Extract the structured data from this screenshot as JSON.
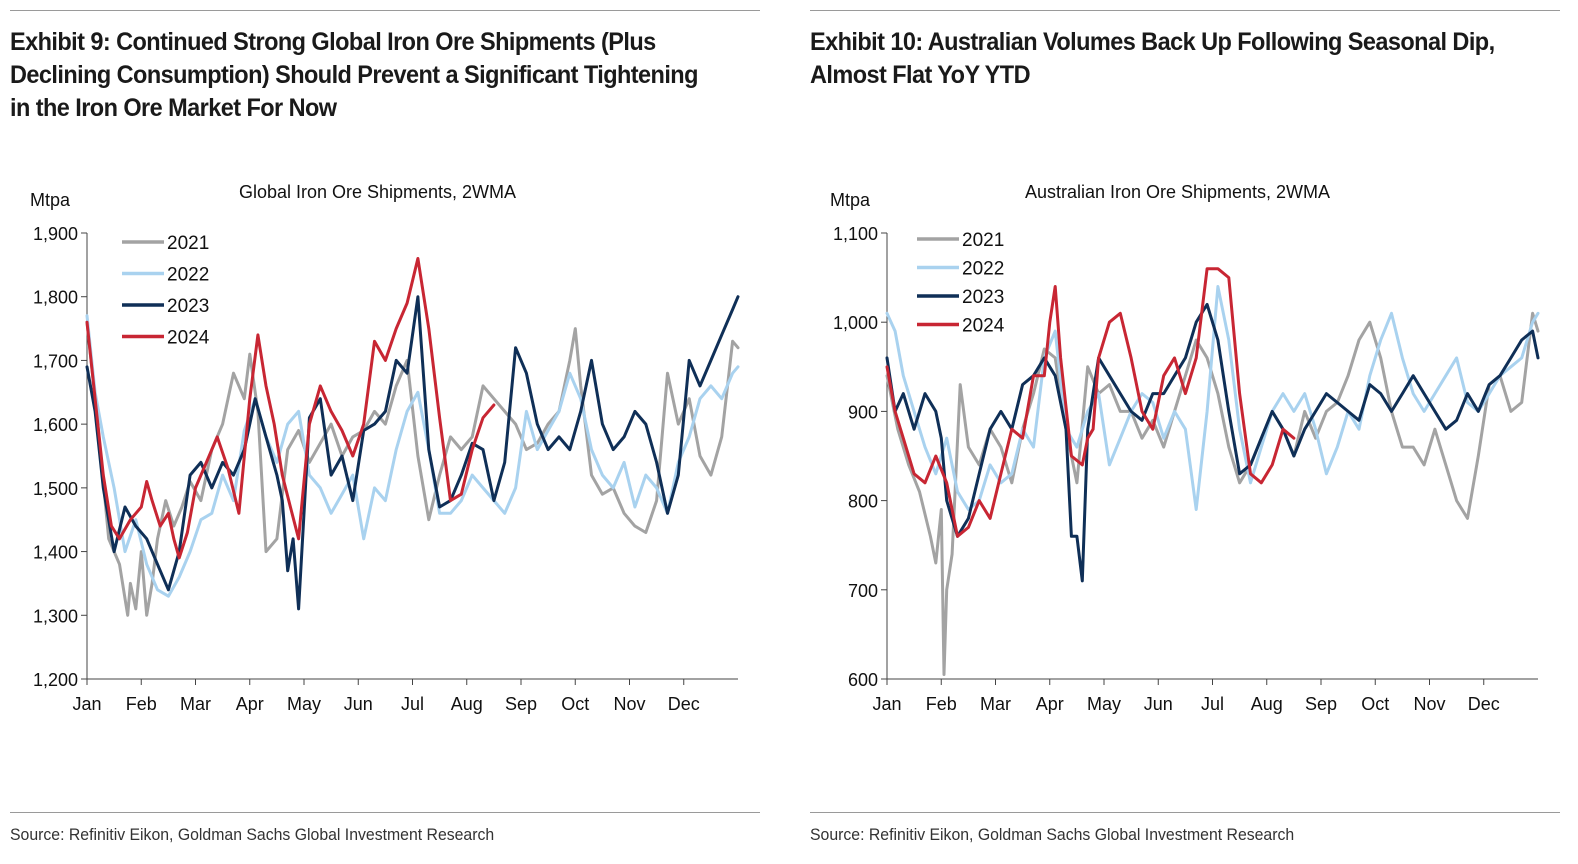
{
  "source_text": "Source: Refinitiv Eikon, Goldman Sachs Global Investment Research",
  "colors": {
    "2021": "#a3a3a3",
    "2022": "#a9d2ef",
    "2023": "#0f2f57",
    "2024": "#c82633"
  },
  "chart_data": [
    {
      "exhibit_title": "Exhibit 9: Continued Strong Global Iron Ore Shipments (Plus Declining Consumption) Should Prevent a Significant Tightening in the Iron Ore Market For Now",
      "type": "line",
      "title": "Global Iron Ore Shipments, 2WMA",
      "ylabel": "Mtpa",
      "ylim": [
        1200,
        1900
      ],
      "yticks": [
        1200,
        1300,
        1400,
        1500,
        1600,
        1700,
        1800,
        1900
      ],
      "ytick_labels": [
        "1,200",
        "1,300",
        "1,400",
        "1,500",
        "1,600",
        "1,700",
        "1,800",
        "1,900"
      ],
      "xlim": [
        0,
        12
      ],
      "xticks": [
        0,
        1,
        2,
        3,
        4,
        5,
        6,
        7,
        8,
        9,
        10,
        11
      ],
      "xtick_labels": [
        "Jan",
        "Feb",
        "Mar",
        "Apr",
        "May",
        "Jun",
        "Jul",
        "Aug",
        "Sep",
        "Oct",
        "Nov",
        "Dec"
      ],
      "grid": false,
      "legend": "top-left",
      "series": [
        {
          "name": "2021",
          "color": "#a3a3a3",
          "x": [
            0.0,
            0.2,
            0.4,
            0.6,
            0.75,
            0.8,
            0.9,
            1.0,
            1.1,
            1.2,
            1.3,
            1.45,
            1.6,
            1.75,
            1.9,
            2.1,
            2.3,
            2.5,
            2.7,
            2.9,
            3.0,
            3.15,
            3.3,
            3.5,
            3.7,
            3.9,
            4.1,
            4.3,
            4.5,
            4.7,
            4.9,
            5.1,
            5.3,
            5.5,
            5.7,
            5.9,
            6.1,
            6.3,
            6.5,
            6.7,
            6.9,
            7.1,
            7.3,
            7.5,
            7.7,
            7.9,
            8.1,
            8.3,
            8.5,
            8.7,
            8.9,
            9.0,
            9.1,
            9.3,
            9.5,
            9.7,
            9.9,
            10.1,
            10.3,
            10.5,
            10.7,
            10.9,
            11.1,
            11.3,
            11.5,
            11.7,
            11.9,
            12.0
          ],
          "values": [
            1760,
            1600,
            1420,
            1380,
            1300,
            1350,
            1310,
            1400,
            1300,
            1350,
            1420,
            1480,
            1440,
            1470,
            1510,
            1480,
            1560,
            1600,
            1680,
            1640,
            1710,
            1620,
            1400,
            1420,
            1560,
            1590,
            1540,
            1570,
            1600,
            1550,
            1580,
            1590,
            1620,
            1600,
            1660,
            1700,
            1550,
            1450,
            1520,
            1580,
            1560,
            1580,
            1660,
            1640,
            1620,
            1600,
            1560,
            1570,
            1600,
            1620,
            1700,
            1750,
            1660,
            1520,
            1490,
            1500,
            1460,
            1440,
            1430,
            1480,
            1680,
            1600,
            1640,
            1550,
            1520,
            1580,
            1730,
            1720
          ]
        },
        {
          "name": "2022",
          "color": "#a9d2ef",
          "x": [
            0.0,
            0.15,
            0.3,
            0.5,
            0.7,
            0.9,
            1.1,
            1.3,
            1.5,
            1.7,
            1.9,
            2.1,
            2.3,
            2.5,
            2.7,
            2.9,
            3.1,
            3.3,
            3.5,
            3.7,
            3.9,
            4.1,
            4.3,
            4.5,
            4.7,
            4.9,
            5.1,
            5.3,
            5.5,
            5.7,
            5.9,
            6.1,
            6.3,
            6.5,
            6.7,
            6.9,
            7.1,
            7.3,
            7.5,
            7.7,
            7.9,
            8.1,
            8.3,
            8.5,
            8.7,
            8.9,
            9.1,
            9.3,
            9.5,
            9.7,
            9.9,
            10.1,
            10.3,
            10.5,
            10.7,
            10.9,
            11.1,
            11.3,
            11.5,
            11.7,
            11.9,
            12.0
          ],
          "values": [
            1770,
            1650,
            1580,
            1500,
            1400,
            1450,
            1380,
            1340,
            1330,
            1360,
            1400,
            1450,
            1460,
            1520,
            1480,
            1590,
            1640,
            1580,
            1540,
            1600,
            1620,
            1520,
            1500,
            1460,
            1490,
            1520,
            1420,
            1500,
            1480,
            1560,
            1620,
            1650,
            1560,
            1460,
            1460,
            1480,
            1520,
            1500,
            1480,
            1460,
            1500,
            1620,
            1560,
            1590,
            1620,
            1680,
            1640,
            1560,
            1520,
            1500,
            1540,
            1470,
            1520,
            1500,
            1460,
            1540,
            1580,
            1640,
            1660,
            1640,
            1680,
            1690
          ]
        },
        {
          "name": "2023",
          "color": "#0f2f57",
          "x": [
            0.0,
            0.15,
            0.3,
            0.5,
            0.7,
            0.9,
            1.1,
            1.3,
            1.5,
            1.7,
            1.9,
            2.1,
            2.3,
            2.5,
            2.7,
            2.9,
            3.1,
            3.3,
            3.5,
            3.6,
            3.7,
            3.8,
            3.9,
            4.1,
            4.3,
            4.5,
            4.7,
            4.9,
            5.1,
            5.3,
            5.5,
            5.7,
            5.9,
            6.1,
            6.3,
            6.5,
            6.7,
            6.9,
            7.1,
            7.3,
            7.5,
            7.7,
            7.9,
            8.1,
            8.3,
            8.5,
            8.7,
            8.9,
            9.1,
            9.3,
            9.5,
            9.7,
            9.9,
            10.1,
            10.3,
            10.5,
            10.7,
            10.9,
            11.1,
            11.3,
            11.5,
            11.7,
            11.9,
            12.0
          ],
          "values": [
            1690,
            1620,
            1500,
            1400,
            1470,
            1440,
            1420,
            1380,
            1340,
            1400,
            1520,
            1540,
            1500,
            1540,
            1520,
            1560,
            1640,
            1580,
            1520,
            1480,
            1370,
            1420,
            1310,
            1610,
            1640,
            1520,
            1550,
            1480,
            1590,
            1600,
            1620,
            1700,
            1680,
            1800,
            1560,
            1470,
            1480,
            1520,
            1570,
            1560,
            1480,
            1540,
            1720,
            1680,
            1600,
            1560,
            1580,
            1560,
            1620,
            1700,
            1600,
            1560,
            1580,
            1620,
            1600,
            1540,
            1460,
            1520,
            1700,
            1660,
            1700,
            1740,
            1780,
            1800
          ]
        },
        {
          "name": "2024",
          "color": "#c82633",
          "x": [
            0.0,
            0.15,
            0.3,
            0.45,
            0.6,
            0.8,
            1.0,
            1.1,
            1.2,
            1.35,
            1.5,
            1.6,
            1.7,
            1.85,
            2.0,
            2.2,
            2.4,
            2.6,
            2.8,
            3.0,
            3.15,
            3.3,
            3.45,
            3.6,
            3.75,
            3.9,
            4.1,
            4.3,
            4.5,
            4.7,
            4.9,
            5.1,
            5.3,
            5.5,
            5.7,
            5.9,
            6.1,
            6.3,
            6.5,
            6.7,
            6.9,
            7.1,
            7.3,
            7.5
          ],
          "values": [
            1760,
            1640,
            1520,
            1440,
            1420,
            1450,
            1470,
            1510,
            1480,
            1440,
            1460,
            1420,
            1390,
            1430,
            1500,
            1540,
            1580,
            1530,
            1460,
            1640,
            1740,
            1660,
            1600,
            1520,
            1470,
            1420,
            1600,
            1660,
            1620,
            1590,
            1550,
            1600,
            1730,
            1700,
            1750,
            1790,
            1860,
            1750,
            1610,
            1480,
            1490,
            1560,
            1610,
            1630
          ]
        }
      ]
    },
    {
      "exhibit_title": "Exhibit 10: Australian Volumes Back Up Following Seasonal Dip, Almost Flat YoY YTD",
      "type": "line",
      "title": "Australian Iron Ore Shipments, 2WMA",
      "ylabel": "Mtpa",
      "ylim": [
        600,
        1100
      ],
      "yticks": [
        600,
        700,
        800,
        900,
        1000,
        1100
      ],
      "ytick_labels": [
        "600",
        "700",
        "800",
        "900",
        "1,000",
        "1,100"
      ],
      "xlim": [
        0,
        12
      ],
      "xticks": [
        0,
        1,
        2,
        3,
        4,
        5,
        6,
        7,
        8,
        9,
        10,
        11
      ],
      "xtick_labels": [
        "Jan",
        "Feb",
        "Mar",
        "Apr",
        "May",
        "Jun",
        "Jul",
        "Aug",
        "Sep",
        "Oct",
        "Nov",
        "Dec"
      ],
      "grid": false,
      "legend": "top-left",
      "series": [
        {
          "name": "2021",
          "color": "#a3a3a3",
          "x": [
            0.0,
            0.2,
            0.4,
            0.6,
            0.8,
            0.9,
            1.0,
            1.05,
            1.1,
            1.2,
            1.35,
            1.5,
            1.7,
            1.9,
            2.1,
            2.3,
            2.5,
            2.7,
            2.9,
            3.1,
            3.3,
            3.5,
            3.7,
            3.9,
            4.1,
            4.3,
            4.5,
            4.7,
            4.9,
            5.1,
            5.3,
            5.5,
            5.7,
            5.9,
            6.1,
            6.3,
            6.5,
            6.7,
            6.9,
            7.1,
            7.3,
            7.5,
            7.7,
            7.9,
            8.1,
            8.3,
            8.5,
            8.7,
            8.9,
            9.1,
            9.3,
            9.5,
            9.7,
            9.9,
            10.1,
            10.3,
            10.5,
            10.7,
            10.9,
            11.1,
            11.3,
            11.5,
            11.7,
            11.9,
            12.0
          ],
          "values": [
            940,
            880,
            840,
            810,
            760,
            730,
            790,
            605,
            700,
            740,
            930,
            860,
            840,
            880,
            860,
            820,
            880,
            920,
            970,
            960,
            880,
            820,
            950,
            920,
            930,
            900,
            900,
            870,
            890,
            860,
            900,
            940,
            980,
            960,
            920,
            860,
            820,
            840,
            870,
            900,
            880,
            850,
            900,
            870,
            900,
            910,
            940,
            980,
            1000,
            960,
            900,
            860,
            860,
            840,
            880,
            840,
            800,
            780,
            850,
            930,
            940,
            900,
            910,
            1010,
            990
          ]
        },
        {
          "name": "2022",
          "color": "#a9d2ef",
          "x": [
            0.0,
            0.15,
            0.3,
            0.5,
            0.7,
            0.9,
            1.1,
            1.3,
            1.5,
            1.7,
            1.9,
            2.1,
            2.3,
            2.5,
            2.7,
            2.9,
            3.1,
            3.3,
            3.5,
            3.7,
            3.9,
            4.1,
            4.3,
            4.5,
            4.7,
            4.9,
            5.1,
            5.3,
            5.5,
            5.7,
            5.9,
            6.1,
            6.3,
            6.5,
            6.7,
            6.9,
            7.1,
            7.3,
            7.5,
            7.7,
            7.9,
            8.1,
            8.3,
            8.5,
            8.7,
            8.9,
            9.1,
            9.3,
            9.5,
            9.7,
            9.9,
            10.1,
            10.3,
            10.5,
            10.7,
            10.9,
            11.1,
            11.3,
            11.5,
            11.7,
            11.9,
            12.0
          ],
          "values": [
            1010,
            990,
            940,
            900,
            860,
            830,
            870,
            810,
            790,
            800,
            840,
            820,
            830,
            880,
            860,
            960,
            990,
            880,
            860,
            900,
            920,
            840,
            870,
            900,
            920,
            910,
            870,
            900,
            880,
            790,
            900,
            1040,
            980,
            880,
            820,
            860,
            900,
            920,
            900,
            920,
            880,
            830,
            860,
            900,
            880,
            940,
            980,
            1010,
            960,
            920,
            900,
            920,
            940,
            960,
            910,
            900,
            920,
            940,
            950,
            960,
            1000,
            1010
          ]
        },
        {
          "name": "2023",
          "color": "#0f2f57",
          "x": [
            0.0,
            0.15,
            0.3,
            0.5,
            0.7,
            0.9,
            1.0,
            1.1,
            1.3,
            1.5,
            1.7,
            1.9,
            2.1,
            2.3,
            2.5,
            2.7,
            2.9,
            3.1,
            3.3,
            3.4,
            3.5,
            3.6,
            3.7,
            3.8,
            3.9,
            4.1,
            4.3,
            4.5,
            4.7,
            4.9,
            5.1,
            5.3,
            5.5,
            5.7,
            5.9,
            6.1,
            6.3,
            6.5,
            6.7,
            6.9,
            7.1,
            7.3,
            7.5,
            7.7,
            7.9,
            8.1,
            8.3,
            8.5,
            8.7,
            8.9,
            9.1,
            9.3,
            9.5,
            9.7,
            9.9,
            10.1,
            10.3,
            10.5,
            10.7,
            10.9,
            11.1,
            11.3,
            11.5,
            11.7,
            11.9,
            12.0
          ],
          "values": [
            960,
            900,
            920,
            880,
            920,
            900,
            870,
            800,
            760,
            780,
            830,
            880,
            900,
            880,
            930,
            940,
            960,
            940,
            880,
            760,
            760,
            710,
            880,
            920,
            960,
            940,
            920,
            900,
            890,
            920,
            920,
            940,
            960,
            1000,
            1020,
            980,
            900,
            830,
            840,
            870,
            900,
            880,
            850,
            880,
            900,
            920,
            910,
            900,
            890,
            930,
            920,
            900,
            920,
            940,
            920,
            900,
            880,
            890,
            920,
            900,
            930,
            940,
            960,
            980,
            990,
            960
          ]
        },
        {
          "name": "2024",
          "color": "#c82633",
          "x": [
            0.0,
            0.15,
            0.3,
            0.5,
            0.7,
            0.9,
            1.1,
            1.3,
            1.5,
            1.7,
            1.9,
            2.1,
            2.3,
            2.5,
            2.7,
            2.9,
            3.0,
            3.1,
            3.2,
            3.4,
            3.6,
            3.7,
            3.8,
            3.9,
            4.1,
            4.3,
            4.5,
            4.7,
            4.9,
            5.1,
            5.3,
            5.5,
            5.7,
            5.9,
            6.1,
            6.3,
            6.5,
            6.7,
            6.9,
            7.1,
            7.3,
            7.5
          ],
          "values": [
            950,
            900,
            870,
            830,
            820,
            850,
            820,
            760,
            770,
            800,
            780,
            830,
            880,
            870,
            940,
            940,
            1000,
            1040,
            960,
            850,
            840,
            870,
            880,
            960,
            1000,
            1010,
            960,
            900,
            880,
            940,
            960,
            920,
            960,
            1060,
            1060,
            1050,
            920,
            830,
            820,
            840,
            880,
            870
          ]
        }
      ]
    }
  ]
}
